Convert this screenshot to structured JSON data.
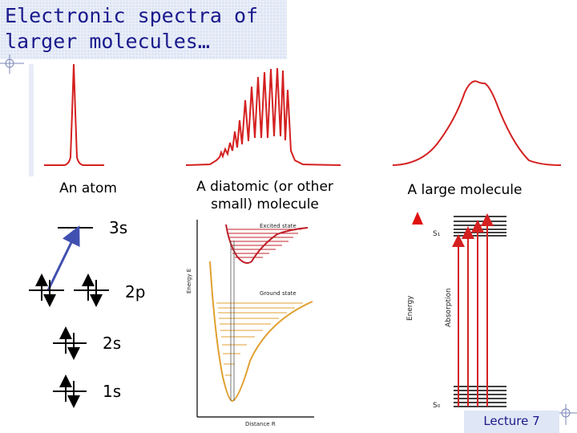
{
  "slide": {
    "title": "Electronic spectra of\nlarger molecules…",
    "footer": "Lecture 7"
  },
  "spectra": {
    "atom_label": "An atom",
    "diatomic_label": "A diatomic (or other small) molecule",
    "large_label": "A large molecule"
  },
  "orbitals": {
    "label_3s": "3s",
    "label_2p": "2p",
    "label_2s": "2s",
    "label_1s": "1s"
  },
  "potential_diagram": {
    "excited_label": "Excited state",
    "ground_label": "Ground state",
    "y_axis_label": "Energy E",
    "x_axis_label": "Distance R"
  },
  "absorption_diagram": {
    "energy_label": "Energy",
    "absorption_label": "Absorption",
    "upper_state": "S₁",
    "lower_state": "S₀"
  },
  "colors": {
    "spectrum_red": "#d42020",
    "title_text": "#1a1a8c",
    "excited_level": "#c0202a",
    "ground_level": "#e0a030",
    "transition_arrow": "#4050b0"
  }
}
